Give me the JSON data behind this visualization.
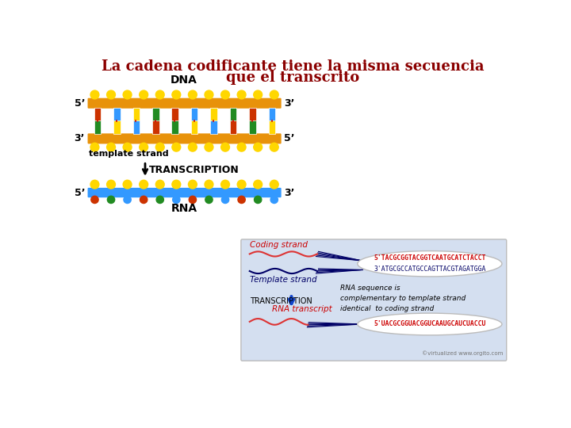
{
  "title_line1": "La cadena codificante tiene la misma secuencia",
  "title_line2": "que el transcrito",
  "title_color": "#8B0000",
  "title_fontsize": 13,
  "bg_color": "#FFFFFF",
  "dna_label": "DNA",
  "rna_label": "RNA",
  "template_strand_label": "template strand",
  "transcription_label": "TRANSCRIPTION",
  "label_5prime_top_left": "5’",
  "label_3prime_top_right": "3’",
  "label_3prime_bot_left": "3’",
  "label_5prime_bot_right": "5’",
  "label_5prime_rna_left": "5’",
  "label_3prime_rna_right": "3’",
  "backbone_color": "#E8920A",
  "rna_backbone_color": "#3399FF",
  "bp_top_colors": [
    "#CC3300",
    "#3399FF",
    "#FFD700",
    "#228B22",
    "#CC3300",
    "#3399FF",
    "#FFD700",
    "#228B22",
    "#CC3300",
    "#3399FF"
  ],
  "bp_bot_colors": [
    "#228B22",
    "#FFD700",
    "#3399FF",
    "#CC3300",
    "#228B22",
    "#FFD700",
    "#3399FF",
    "#CC3300",
    "#228B22",
    "#FFD700"
  ],
  "top_nuc_colors": [
    "#FFD700",
    "#FFD700",
    "#FFD700",
    "#FFD700",
    "#FFD700",
    "#FFD700",
    "#FFD700",
    "#FFD700",
    "#FFD700",
    "#FFD700",
    "#FFD700",
    "#FFD700"
  ],
  "bot_nuc_colors": [
    "#FFD700",
    "#FFD700",
    "#FFD700",
    "#FFD700",
    "#FFD700",
    "#FFD700",
    "#FFD700",
    "#FFD700",
    "#FFD700",
    "#FFD700",
    "#FFD700",
    "#FFD700"
  ],
  "rna_top_nuc_colors": [
    "#FFD700",
    "#FFD700",
    "#FFD700",
    "#FFD700",
    "#FFD700",
    "#FFD700",
    "#FFD700",
    "#FFD700",
    "#FFD700",
    "#FFD700",
    "#FFD700",
    "#FFD700"
  ],
  "rna_bot_colors": [
    "#CC3300",
    "#228B22",
    "#3399FF",
    "#CC3300",
    "#228B22",
    "#3399FF",
    "#CC3300",
    "#228B22",
    "#3399FF",
    "#CC3300",
    "#228B22",
    "#3399FF"
  ]
}
